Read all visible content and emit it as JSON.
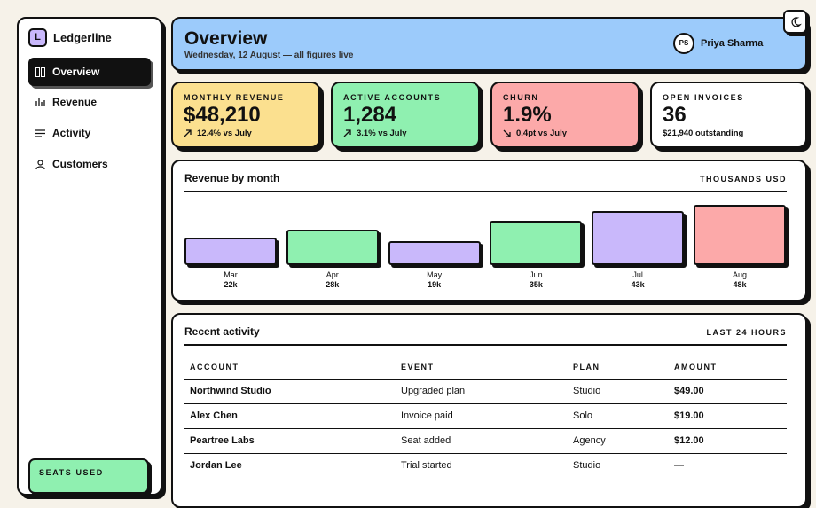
{
  "sidebar": {
    "brand_initial": "L",
    "brand": "Ledgerline",
    "nav": [
      "Overview",
      "Revenue",
      "Activity",
      "Customers"
    ],
    "seats_label": "SEATS USED"
  },
  "header": {
    "title": "Overview",
    "subtitle": "Wednesday, 12 August — all figures live",
    "user": {
      "initials": "PS",
      "name": "Priya Sharma"
    }
  },
  "kpis": [
    {
      "label": "MONTHLY REVENUE",
      "value": "$48,210",
      "delta": "12.4% vs July"
    },
    {
      "label": "ACTIVE ACCOUNTS",
      "value": "1,284",
      "delta": "3.1% vs July"
    },
    {
      "label": "CHURN",
      "value": "1.9%",
      "delta": "0.4pt vs July"
    },
    {
      "label": "OPEN INVOICES",
      "value": "36",
      "delta": "$21,940 outstanding"
    }
  ],
  "chart_data": {
    "type": "bar",
    "title": "Revenue by month",
    "unit_label": "THOUSANDS USD",
    "categories": [
      "Mar",
      "Apr",
      "May",
      "Jun",
      "Jul",
      "Aug"
    ],
    "values": [
      22,
      28,
      19,
      35,
      43,
      48
    ],
    "value_labels": [
      "22k",
      "28k",
      "19k",
      "35k",
      "43k",
      "48k"
    ],
    "colors": [
      "#c9b8fb",
      "#8ff0b0",
      "#c9b8fb",
      "#8ff0b0",
      "#c9b8fb",
      "#fca9a9"
    ]
  },
  "activity": {
    "title": "Recent activity",
    "range": "LAST 24 HOURS",
    "columns": [
      "ACCOUNT",
      "EVENT",
      "PLAN",
      "AMOUNT"
    ],
    "rows": [
      [
        "Northwind Studio",
        "Upgraded plan",
        "Studio",
        "$49.00"
      ],
      [
        "Alex Chen",
        "Invoice paid",
        "Solo",
        "$19.00"
      ],
      [
        "Peartree Labs",
        "Seat added",
        "Agency",
        "$12.00"
      ],
      [
        "Jordan Lee",
        "Trial started",
        "Studio",
        "—"
      ]
    ]
  }
}
